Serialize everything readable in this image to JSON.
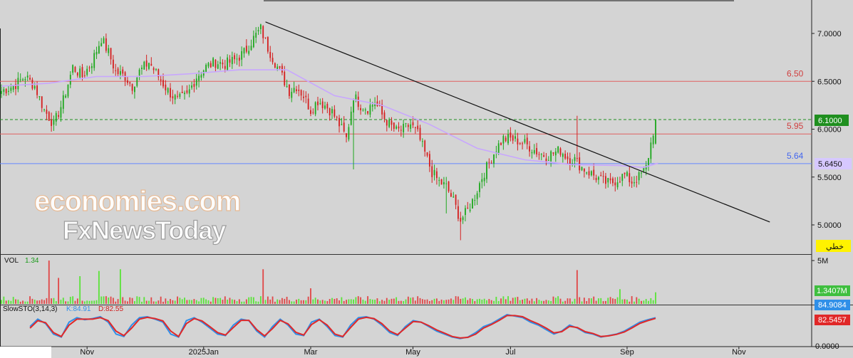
{
  "watermark": {
    "line1": "economies.com",
    "line2": "FxNewsToday"
  },
  "colors": {
    "up": "#1fa81f",
    "down": "#d42020",
    "ma": "#c8a6ff",
    "vol_up": "#5be33a",
    "vol_down": "#e04848",
    "k_line": "#2f8fe8",
    "d_line": "#e02828",
    "trend": "#111111",
    "res_red": "#e06060",
    "sup_blue": "#6688ff",
    "last_price_box": "#1f8f1f",
    "ma_box": "#d6c8ff",
    "badge_yellow": "#fff200"
  },
  "chart_data": [
    {
      "type": "candlestick",
      "panel": "price",
      "ylim": [
        4.8,
        7.4
      ],
      "yticks": [
        "7.0000",
        "6.5000",
        "6.0000",
        "5.5000",
        "5.0000"
      ],
      "xticks": [
        "Nov",
        "2025Jan",
        "Mar",
        "May",
        "Jul",
        "Sep",
        "Nov"
      ],
      "price_path": [
        [
          0,
          6.4
        ],
        [
          5,
          6.45
        ],
        [
          10,
          6.55
        ],
        [
          14,
          6.45
        ],
        [
          18,
          6.2
        ],
        [
          22,
          6.05
        ],
        [
          26,
          6.3
        ],
        [
          30,
          6.65
        ],
        [
          34,
          6.55
        ],
        [
          38,
          6.7
        ],
        [
          42,
          6.95
        ],
        [
          45,
          6.8
        ],
        [
          48,
          6.6
        ],
        [
          52,
          6.55
        ],
        [
          55,
          6.45
        ],
        [
          58,
          6.6
        ],
        [
          62,
          6.7
        ],
        [
          66,
          6.55
        ],
        [
          70,
          6.4
        ],
        [
          74,
          6.3
        ],
        [
          78,
          6.35
        ],
        [
          82,
          6.55
        ],
        [
          86,
          6.65
        ],
        [
          90,
          6.7
        ],
        [
          94,
          6.68
        ],
        [
          98,
          6.72
        ],
        [
          102,
          6.8
        ],
        [
          106,
          6.95
        ],
        [
          109,
          7.05
        ],
        [
          112,
          6.85
        ],
        [
          115,
          6.7
        ],
        [
          118,
          6.55
        ],
        [
          121,
          6.4
        ],
        [
          124,
          6.45
        ],
        [
          127,
          6.35
        ],
        [
          130,
          6.2
        ],
        [
          133,
          6.3
        ],
        [
          136,
          6.25
        ],
        [
          139,
          6.18
        ],
        [
          142,
          6.05
        ],
        [
          145,
          5.9
        ],
        [
          148,
          6.35
        ],
        [
          151,
          6.25
        ],
        [
          154,
          6.22
        ],
        [
          157,
          6.28
        ],
        [
          160,
          6.15
        ],
        [
          163,
          6.05
        ],
        [
          166,
          5.98
        ],
        [
          169,
          6.0
        ],
        [
          172,
          6.05
        ],
        [
          175,
          5.95
        ],
        [
          178,
          5.75
        ],
        [
          181,
          5.55
        ],
        [
          184,
          5.45
        ],
        [
          187,
          5.4
        ],
        [
          190,
          5.25
        ],
        [
          193,
          5.05
        ],
        [
          196,
          5.15
        ],
        [
          199,
          5.3
        ],
        [
          202,
          5.5
        ],
        [
          205,
          5.65
        ],
        [
          208,
          5.8
        ],
        [
          211,
          5.9
        ],
        [
          214,
          5.9
        ],
        [
          217,
          5.88
        ],
        [
          220,
          5.85
        ],
        [
          223,
          5.8
        ],
        [
          226,
          5.75
        ],
        [
          229,
          5.72
        ],
        [
          232,
          5.75
        ],
        [
          235,
          5.78
        ],
        [
          238,
          5.7
        ],
        [
          241,
          5.68
        ],
        [
          244,
          5.6
        ],
        [
          247,
          5.55
        ],
        [
          250,
          5.5
        ],
        [
          253,
          5.45
        ],
        [
          256,
          5.43
        ],
        [
          259,
          5.48
        ],
        [
          262,
          5.52
        ],
        [
          265,
          5.45
        ],
        [
          268,
          5.5
        ],
        [
          271,
          5.6
        ],
        [
          273,
          5.85
        ],
        [
          275,
          6.1
        ]
      ],
      "last_bar": {
        "open": 5.85,
        "high": 6.1,
        "low": 5.84,
        "close": 6.1
      },
      "total_bars": 276,
      "x_range_bars": [
        0,
        340
      ],
      "ma_path": [
        [
          0,
          6.45
        ],
        [
          20,
          6.48
        ],
        [
          40,
          6.55
        ],
        [
          60,
          6.55
        ],
        [
          80,
          6.58
        ],
        [
          100,
          6.62
        ],
        [
          120,
          6.62
        ],
        [
          140,
          6.35
        ],
        [
          160,
          6.25
        ],
        [
          180,
          6.05
        ],
        [
          200,
          5.8
        ],
        [
          220,
          5.68
        ],
        [
          240,
          5.63
        ],
        [
          260,
          5.62
        ],
        [
          270,
          5.6
        ],
        [
          276,
          5.645
        ]
      ],
      "trendline": {
        "from": [
          111,
          7.12
        ],
        "to": [
          323,
          5.03
        ]
      },
      "levels": [
        {
          "value": 6.5,
          "label": "6.50",
          "style": "solid",
          "color": "red"
        },
        {
          "value": 5.95,
          "label": "5.95",
          "style": "solid",
          "color": "red"
        },
        {
          "value": 5.64,
          "label": "5.64",
          "style": "solid",
          "color": "blue"
        },
        {
          "value": 6.1,
          "label": "",
          "style": "dashed",
          "color": "green"
        }
      ],
      "right_labels": {
        "last_price": "6.1000",
        "ma_value": "5.6450",
        "badge": "خطي"
      }
    },
    {
      "type": "bar",
      "panel": "volume",
      "title": "VOL",
      "current": "1.34",
      "ylim": [
        0,
        5.5
      ],
      "yticks": [
        "5M"
      ],
      "right_label": "1.3407M",
      "spikes": [
        [
          20,
          5.0
        ],
        [
          24,
          3.0
        ],
        [
          33,
          3.2
        ],
        [
          41,
          3.8
        ],
        [
          50,
          4.0
        ],
        [
          110,
          4.0
        ],
        [
          130,
          1.8
        ],
        [
          242,
          3.9
        ],
        [
          260,
          1.7
        ],
        [
          275,
          1.34
        ]
      ]
    },
    {
      "type": "line",
      "panel": "stochastic",
      "title": "SlowSTO(3,14,3)",
      "k_label": "K:84.91",
      "d_label": "D:82.55",
      "ylim": [
        0,
        100
      ],
      "yticks": [
        "0.0000"
      ],
      "k_value": "84.9084",
      "d_value": "82.5457",
      "series": [
        {
          "name": "K",
          "values": [
            55,
            80,
            65,
            30,
            20,
            70,
            85,
            78,
            82,
            88,
            70,
            30,
            22,
            60,
            85,
            88,
            80,
            70,
            30,
            20,
            75,
            85,
            70,
            50,
            30,
            25,
            60,
            80,
            75,
            40,
            20,
            55,
            80,
            60,
            30,
            25,
            70,
            80,
            55,
            25,
            20,
            60,
            85,
            88,
            80,
            60,
            35,
            25,
            55,
            75,
            70,
            55,
            40,
            30,
            20,
            15,
            20,
            35,
            55,
            65,
            80,
            95,
            90,
            85,
            70,
            60,
            45,
            30,
            40,
            60,
            50,
            35,
            30,
            20,
            25,
            30,
            40,
            55,
            70,
            78,
            84.91
          ]
        },
        {
          "name": "D",
          "values": [
            50,
            75,
            68,
            35,
            22,
            60,
            80,
            80,
            80,
            85,
            75,
            40,
            25,
            50,
            80,
            86,
            82,
            74,
            40,
            22,
            65,
            82,
            74,
            55,
            35,
            27,
            52,
            76,
            76,
            45,
            24,
            48,
            76,
            64,
            36,
            27,
            62,
            78,
            60,
            30,
            22,
            52,
            80,
            86,
            82,
            65,
            40,
            28,
            50,
            72,
            70,
            58,
            44,
            33,
            22,
            17,
            19,
            30,
            50,
            62,
            76,
            92,
            92,
            88,
            75,
            64,
            50,
            34,
            38,
            56,
            52,
            38,
            32,
            22,
            24,
            29,
            37,
            51,
            66,
            75,
            82.55
          ]
        }
      ]
    }
  ]
}
